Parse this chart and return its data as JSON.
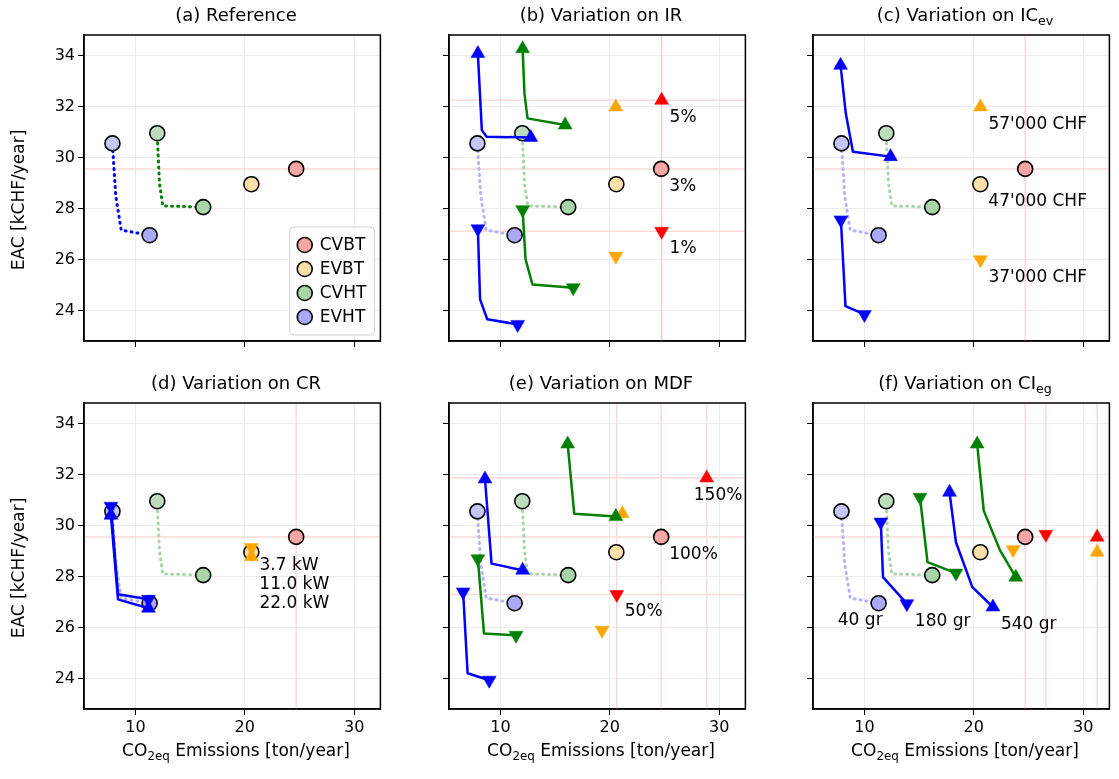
{
  "chart_data": [
    {
      "type": "scatter",
      "title": "(a) Reference",
      "ylabel": "EAC [kCHF/year]",
      "xlim": [
        5.3,
        32.4
      ],
      "ylim": [
        22.8,
        34.8
      ],
      "xticks": [
        10,
        20,
        30
      ],
      "yticks": [
        24,
        26,
        28,
        30,
        32,
        34
      ],
      "tick_labels": "y",
      "grid": true,
      "legend": "bottom right",
      "ref_lines": [
        {
          "axis": "y",
          "value": 29.55,
          "color": "#fbdada"
        }
      ],
      "series": [
        {
          "type": "line",
          "color": "#0000ff",
          "line_style": "dotted",
          "marker": "none",
          "x": [
            7.9,
            8.2,
            8.7,
            11.3
          ],
          "values": [
            30.5,
            28.5,
            27.15,
            26.95
          ]
        },
        {
          "type": "line",
          "color": "#008000",
          "line_style": "dotted",
          "marker": "none",
          "x": [
            12.0,
            12.2,
            12.5,
            16.2
          ],
          "values": [
            30.8,
            29.0,
            28.1,
            28.05
          ]
        },
        {
          "type": "scatter",
          "color": "#c5c5f7",
          "marker": "circle",
          "x": [
            7.9
          ],
          "values": [
            30.55
          ]
        },
        {
          "type": "scatter",
          "color": "#bcdcbc",
          "marker": "circle",
          "x": [
            12.0
          ],
          "values": [
            30.95
          ]
        },
        {
          "type": "scatter",
          "name": "CVBT",
          "color": "#f8a5a5",
          "marker": "circle",
          "x": [
            24.7
          ],
          "values": [
            29.55
          ]
        },
        {
          "type": "scatter",
          "name": "EVBT",
          "color": "#fbe0a8",
          "marker": "circle",
          "x": [
            20.6
          ],
          "values": [
            28.95
          ]
        },
        {
          "type": "scatter",
          "name": "CVHT",
          "color": "#a9d6a9",
          "marker": "circle",
          "x": [
            16.2
          ],
          "values": [
            28.05
          ]
        },
        {
          "type": "scatter",
          "name": "EVHT",
          "color": "#a9a9f5",
          "marker": "circle",
          "x": [
            11.3
          ],
          "values": [
            26.95
          ]
        }
      ]
    },
    {
      "type": "scatter",
      "title": "(b) Variation on IR",
      "xlim": [
        5.3,
        32.4
      ],
      "ylim": [
        22.8,
        34.8
      ],
      "xticks": [
        10,
        20,
        30
      ],
      "yticks": [
        24,
        26,
        28,
        30,
        32,
        34
      ],
      "tick_labels": false,
      "grid": true,
      "ref_lines": [
        {
          "axis": "x",
          "value": 24.74,
          "color": "#fbcaca"
        },
        {
          "axis": "y",
          "value": 32.24,
          "color": "#fbdada"
        },
        {
          "axis": "y",
          "value": 29.55,
          "color": "#fbdada"
        },
        {
          "axis": "y",
          "value": 27.1,
          "color": "#fbdada"
        }
      ],
      "annotations": [
        {
          "text": "5%",
          "x": 24.74,
          "y": 32.24
        },
        {
          "text": "3%",
          "x": 24.7,
          "y": 29.55
        },
        {
          "text": "1%",
          "x": 24.74,
          "y": 27.1
        }
      ],
      "series": [
        {
          "type": "line",
          "color": "#b3b3f5",
          "line_style": "dotted",
          "marker": "none",
          "x": [
            7.9,
            8.2,
            8.7,
            11.3
          ],
          "values": [
            30.5,
            28.5,
            27.15,
            26.95
          ]
        },
        {
          "type": "line",
          "color": "#a8d5a8",
          "line_style": "dotted",
          "marker": "none",
          "x": [
            12.0,
            12.2,
            12.5,
            16.2
          ],
          "values": [
            30.8,
            29.0,
            28.1,
            28.05
          ]
        },
        {
          "type": "scatter",
          "color": "#c5c5f7",
          "marker": "circle",
          "x": [
            7.9
          ],
          "values": [
            30.55
          ]
        },
        {
          "type": "scatter",
          "color": "#bcdcbc",
          "marker": "circle",
          "x": [
            12.0
          ],
          "values": [
            30.95
          ]
        },
        {
          "type": "scatter",
          "colors": [
            "#f8a5a5",
            "#fbe0a8",
            "#a9d6a9",
            "#a9a9f5"
          ],
          "marker": "circle",
          "x": [
            24.7,
            20.6,
            16.2,
            11.3
          ],
          "values": [
            29.55,
            28.95,
            28.05,
            26.95
          ]
        },
        {
          "type": "line",
          "color": "#0000ff",
          "line_style": "solid",
          "marker": "none",
          "x": [
            7.94,
            8.3,
            8.74,
            12.78
          ],
          "values": [
            34.07,
            31.07,
            30.81,
            30.78
          ]
        },
        {
          "type": "line",
          "color": "#0000ff",
          "line_style": "solid",
          "marker": "none",
          "x": [
            7.94,
            8.14,
            8.8,
            11.58
          ],
          "values": [
            27.2,
            24.43,
            23.65,
            23.45
          ]
        },
        {
          "type": "line",
          "color": "#008000",
          "line_style": "solid",
          "marker": "none",
          "x": [
            12.03,
            12.2,
            12.48,
            15.92
          ],
          "values": [
            34.26,
            32.5,
            31.53,
            31.27
          ]
        },
        {
          "type": "line",
          "color": "#008000",
          "line_style": "solid",
          "marker": "none",
          "x": [
            12.03,
            12.3,
            12.93,
            16.66
          ],
          "values": [
            27.95,
            26.0,
            25.02,
            24.89
          ]
        },
        {
          "type": "scatter",
          "color": "#0000ff",
          "marker": "triangle",
          "x": [
            7.94,
            12.78
          ],
          "values": [
            34.07,
            30.78
          ]
        },
        {
          "type": "scatter",
          "color": "#0000ff",
          "marker": "triangle-down",
          "x": [
            7.94,
            11.58
          ],
          "values": [
            27.2,
            23.45
          ]
        },
        {
          "type": "scatter",
          "color": "#008000",
          "marker": "triangle",
          "x": [
            12.03,
            15.92
          ],
          "values": [
            34.26,
            31.27
          ]
        },
        {
          "type": "scatter",
          "color": "#008000",
          "marker": "triangle-down",
          "x": [
            12.03,
            16.66
          ],
          "values": [
            27.95,
            24.89
          ]
        },
        {
          "type": "scatter",
          "color": "#ffa500",
          "marker": "triangle",
          "x": [
            20.55
          ],
          "values": [
            31.98
          ]
        },
        {
          "type": "scatter",
          "color": "#ffa500",
          "marker": "triangle-down",
          "x": [
            20.55
          ],
          "values": [
            26.12
          ]
        },
        {
          "type": "scatter",
          "color": "#ff0000",
          "marker": "triangle",
          "x": [
            24.74
          ],
          "values": [
            32.24
          ]
        },
        {
          "type": "scatter",
          "color": "#ff0000",
          "marker": "triangle-down",
          "x": [
            24.74
          ],
          "values": [
            27.1
          ]
        }
      ]
    },
    {
      "type": "scatter",
      "title": "(c) Variation on IC$_{ev}$",
      "xlim": [
        5.3,
        32.4
      ],
      "ylim": [
        22.8,
        34.8
      ],
      "xticks": [
        10,
        20,
        30
      ],
      "yticks": [
        24,
        26,
        28,
        30,
        32,
        34
      ],
      "tick_labels": false,
      "grid": true,
      "ref_lines": [
        {
          "axis": "x",
          "value": 24.7,
          "color": "#fbdada"
        },
        {
          "axis": "y",
          "value": 29.55,
          "color": "#fbdada"
        }
      ],
      "annotations": [
        {
          "text": "57'000 CHF",
          "x": 20.61,
          "y": 31.98
        },
        {
          "text": "47'000 CHF",
          "x": 20.6,
          "y": 28.95
        },
        {
          "text": "37'000 CHF",
          "x": 20.61,
          "y": 25.99
        }
      ],
      "series": [
        {
          "type": "line",
          "color": "#b3b3f5",
          "line_style": "dotted",
          "marker": "none",
          "x": [
            7.9,
            8.2,
            8.7,
            11.3
          ],
          "values": [
            30.5,
            28.5,
            27.15,
            26.95
          ]
        },
        {
          "type": "line",
          "color": "#a8d5a8",
          "line_style": "dotted",
          "marker": "none",
          "x": [
            12.0,
            12.2,
            12.5,
            16.2
          ],
          "values": [
            30.8,
            29.0,
            28.1,
            28.05
          ]
        },
        {
          "type": "scatter",
          "color": "#c5c5f7",
          "marker": "circle",
          "x": [
            7.9
          ],
          "values": [
            30.55
          ]
        },
        {
          "type": "scatter",
          "color": "#bcdcbc",
          "marker": "circle",
          "x": [
            12.0
          ],
          "values": [
            30.95
          ]
        },
        {
          "type": "scatter",
          "colors": [
            "#f8a5a5",
            "#fbe0a8",
            "#a9d6a9",
            "#a9a9f5"
          ],
          "marker": "circle",
          "x": [
            24.7,
            20.6,
            16.2,
            11.3
          ],
          "values": [
            29.55,
            28.95,
            28.05,
            26.95
          ]
        },
        {
          "type": "line",
          "color": "#0000ff",
          "line_style": "solid",
          "marker": "none",
          "x": [
            7.82,
            8.3,
            8.95,
            12.39
          ],
          "values": [
            33.61,
            31.72,
            30.22,
            30.03
          ]
        },
        {
          "type": "line",
          "color": "#0000ff",
          "line_style": "solid",
          "marker": "none",
          "x": [
            7.85,
            8.27,
            10.0
          ],
          "values": [
            27.55,
            24.17,
            23.84
          ]
        },
        {
          "type": "scatter",
          "color": "#0000ff",
          "marker": "triangle",
          "x": [
            7.82,
            12.39
          ],
          "values": [
            33.61,
            30.03
          ]
        },
        {
          "type": "scatter",
          "color": "#0000ff",
          "marker": "triangle-down",
          "x": [
            7.85,
            10.0
          ],
          "values": [
            27.55,
            23.84
          ]
        },
        {
          "type": "scatter",
          "color": "#ffa500",
          "marker": "triangle",
          "x": [
            20.61
          ],
          "values": [
            31.98
          ]
        },
        {
          "type": "scatter",
          "color": "#ffa500",
          "marker": "triangle-down",
          "x": [
            20.61
          ],
          "values": [
            25.99
          ]
        }
      ]
    },
    {
      "type": "scatter",
      "title": "(d) Variation on CR",
      "xlabel": "CO$_{2eq}$ Emissions [ton/year]",
      "ylabel": "EAC [kCHF/year]",
      "xlim": [
        5.3,
        32.4
      ],
      "ylim": [
        22.8,
        34.8
      ],
      "xticks": [
        10,
        20,
        30
      ],
      "yticks": [
        24,
        26,
        28,
        30,
        32,
        34
      ],
      "grid": true,
      "ref_lines": [
        {
          "axis": "x",
          "value": 24.7,
          "color": "#fbdada"
        },
        {
          "axis": "y",
          "value": 29.55,
          "color": "#fbdada"
        }
      ],
      "annotations": [
        {
          "text": "3.7 kW",
          "x": 20.61,
          "y": 29.13
        },
        {
          "text": "11.0 kW",
          "x": 20.6,
          "y": 28.95
        },
        {
          "text": "22.0 kW",
          "x": 20.61,
          "y": 28.77
        }
      ],
      "series": [
        {
          "type": "line",
          "color": "#b3b3f5",
          "line_style": "dotted",
          "marker": "none",
          "x": [
            7.9,
            8.2,
            8.7,
            11.3
          ],
          "values": [
            30.5,
            28.5,
            27.15,
            26.95
          ]
        },
        {
          "type": "line",
          "color": "#a8d5a8",
          "line_style": "dotted",
          "marker": "none",
          "x": [
            12.0,
            12.2,
            12.5,
            16.2
          ],
          "values": [
            30.8,
            29.0,
            28.1,
            28.05
          ]
        },
        {
          "type": "scatter",
          "color": "#c5c5f7",
          "marker": "circle",
          "x": [
            7.9
          ],
          "values": [
            30.55
          ]
        },
        {
          "type": "scatter",
          "color": "#bcdcbc",
          "marker": "circle",
          "x": [
            12.0
          ],
          "values": [
            30.95
          ]
        },
        {
          "type": "scatter",
          "colors": [
            "#f8a5a5",
            "#fbe0a8",
            "#a9d6a9",
            "#a9a9f5"
          ],
          "marker": "circle",
          "x": [
            24.7,
            20.6,
            16.2,
            11.3
          ],
          "values": [
            29.55,
            28.95,
            28.05,
            26.95
          ]
        },
        {
          "type": "line",
          "color": "#0000ff",
          "line_style": "solid",
          "marker": "none",
          "x": [
            7.76,
            8.41,
            11.19
          ],
          "values": [
            30.4,
            27.1,
            26.75
          ]
        },
        {
          "type": "line",
          "color": "#0000ff",
          "line_style": "solid",
          "marker": "none",
          "x": [
            7.76,
            8.41,
            11.19
          ],
          "values": [
            30.75,
            27.3,
            27.1
          ]
        },
        {
          "type": "scatter",
          "color": "#0000ff",
          "marker": "triangle",
          "x": [
            7.76,
            11.19
          ],
          "values": [
            30.4,
            26.75
          ]
        },
        {
          "type": "scatter",
          "color": "#0000ff",
          "marker": "triangle-down",
          "x": [
            7.76,
            11.19
          ],
          "values": [
            30.75,
            27.1
          ]
        },
        {
          "type": "scatter",
          "color": "#ffa500",
          "marker": "triangle",
          "x": [
            20.61
          ],
          "values": [
            28.77
          ]
        },
        {
          "type": "scatter",
          "color": "#ffa500",
          "marker": "triangle-down",
          "x": [
            20.61
          ],
          "values": [
            29.13
          ]
        }
      ]
    },
    {
      "type": "scatter",
      "title": "(e) Variation on MDF",
      "xlabel": "CO$_{2eq}$ Emissions [ton/year]",
      "xlim": [
        5.3,
        32.4
      ],
      "ylim": [
        22.8,
        34.8
      ],
      "xticks": [
        10,
        20,
        30
      ],
      "yticks": [
        24,
        26,
        28,
        30,
        32,
        34
      ],
      "tick_labels": "x",
      "grid": true,
      "ref_lines": [
        {
          "axis": "x",
          "value": 20.64,
          "color": "#fbdada"
        },
        {
          "axis": "x",
          "value": 24.7,
          "color": "#fbdada"
        },
        {
          "axis": "x",
          "value": 28.86,
          "color": "#fbdada"
        },
        {
          "axis": "y",
          "value": 31.86,
          "color": "#fbdada"
        },
        {
          "axis": "y",
          "value": 29.55,
          "color": "#fbdada"
        },
        {
          "axis": "y",
          "value": 27.29,
          "color": "#fbdada"
        }
      ],
      "annotations": [
        {
          "text": "150%",
          "x": 28.86,
          "y": 31.86
        },
        {
          "text": "100%",
          "x": 24.7,
          "y": 29.55
        },
        {
          "text": "50%",
          "x": 20.64,
          "y": 27.29
        }
      ],
      "series": [
        {
          "type": "line",
          "color": "#b3b3f5",
          "line_style": "dotted",
          "marker": "none",
          "x": [
            7.9,
            8.2,
            8.7,
            11.3
          ],
          "values": [
            30.5,
            28.5,
            27.15,
            26.95
          ]
        },
        {
          "type": "line",
          "color": "#a8d5a8",
          "line_style": "dotted",
          "marker": "none",
          "x": [
            12.0,
            12.2,
            12.5,
            16.2
          ],
          "values": [
            30.8,
            29.0,
            28.1,
            28.05
          ]
        },
        {
          "type": "scatter",
          "color": "#c5c5f7",
          "marker": "circle",
          "x": [
            7.9
          ],
          "values": [
            30.55
          ]
        },
        {
          "type": "scatter",
          "color": "#bcdcbc",
          "marker": "circle",
          "x": [
            12.0
          ],
          "values": [
            30.95
          ]
        },
        {
          "type": "scatter",
          "colors": [
            "#f8a5a5",
            "#fbe0a8",
            "#a9d6a9",
            "#a9a9f5"
          ],
          "marker": "circle",
          "x": [
            24.7,
            20.6,
            16.2,
            11.3
          ],
          "values": [
            29.55,
            28.95,
            28.05,
            26.95
          ]
        },
        {
          "type": "scatter",
          "color": "#ffa500",
          "marker": "triangle",
          "x": [
            21.15
          ],
          "values": [
            30.46
          ]
        },
        {
          "type": "line",
          "color": "#0000ff",
          "line_style": "solid",
          "marker": "none",
          "x": [
            8.59,
            9.19,
            12.03
          ],
          "values": [
            31.82,
            28.5,
            28.24
          ]
        },
        {
          "type": "line",
          "color": "#0000ff",
          "line_style": "solid",
          "marker": "none",
          "x": [
            6.59,
            7.0,
            8.98
          ],
          "values": [
            27.39,
            24.2,
            23.93
          ]
        },
        {
          "type": "line",
          "color": "#008000",
          "line_style": "solid",
          "marker": "none",
          "x": [
            16.15,
            16.75,
            20.55
          ],
          "values": [
            33.19,
            30.46,
            30.35
          ]
        },
        {
          "type": "line",
          "color": "#008000",
          "line_style": "solid",
          "marker": "none",
          "x": [
            7.94,
            8.5,
            11.43
          ],
          "values": [
            28.69,
            25.76,
            25.69
          ]
        },
        {
          "type": "scatter",
          "color": "#0000ff",
          "marker": "triangle",
          "x": [
            8.59,
            12.03
          ],
          "values": [
            31.82,
            28.24
          ]
        },
        {
          "type": "scatter",
          "color": "#0000ff",
          "marker": "triangle-down",
          "x": [
            6.59,
            8.98
          ],
          "values": [
            27.39,
            23.93
          ]
        },
        {
          "type": "scatter",
          "color": "#008000",
          "marker": "triangle",
          "x": [
            16.15,
            20.55
          ],
          "values": [
            33.19,
            30.35
          ]
        },
        {
          "type": "scatter",
          "color": "#008000",
          "marker": "triangle-down",
          "x": [
            7.94,
            11.43
          ],
          "values": [
            28.69,
            25.69
          ]
        },
        {
          "type": "scatter",
          "color": "#ffa500",
          "marker": "triangle-down",
          "x": [
            19.29
          ],
          "values": [
            25.89
          ]
        },
        {
          "type": "scatter",
          "color": "#ff0000",
          "marker": "triangle",
          "x": [
            28.86
          ],
          "values": [
            31.86
          ]
        },
        {
          "type": "scatter",
          "color": "#ff0000",
          "marker": "triangle-down",
          "x": [
            20.64
          ],
          "values": [
            27.29
          ]
        }
      ]
    },
    {
      "type": "scatter",
      "title": "(f) Variation on CI$_{eg}$",
      "xlabel": "CO$_{2eq}$ Emissions [ton/year]",
      "xlim": [
        5.3,
        32.4
      ],
      "ylim": [
        22.8,
        34.8
      ],
      "xticks": [
        10,
        20,
        30
      ],
      "yticks": [
        24,
        26,
        28,
        30,
        32,
        34
      ],
      "tick_labels": "x",
      "grid": true,
      "ref_lines": [
        {
          "axis": "x",
          "value": 24.7,
          "color": "#fbdada"
        },
        {
          "axis": "x",
          "value": 26.59,
          "color": "#fbdada"
        },
        {
          "axis": "x",
          "value": 31.28,
          "color": "#fbdada"
        },
        {
          "axis": "y",
          "value": 29.55,
          "color": "#fbdada"
        }
      ],
      "annotations": [
        {
          "text": "40 gr",
          "x": 11.3,
          "y": 26.95
        },
        {
          "text": "180 gr",
          "x": 13.88,
          "y": 26.93
        },
        {
          "text": "540 gr",
          "x": 21.75,
          "y": 26.8
        }
      ],
      "series": [
        {
          "type": "line",
          "color": "#b3b3f5",
          "line_style": "dotted",
          "marker": "none",
          "x": [
            7.9,
            8.2,
            8.7,
            11.3
          ],
          "values": [
            30.5,
            28.5,
            27.15,
            26.95
          ]
        },
        {
          "type": "line",
          "color": "#a8d5a8",
          "line_style": "dotted",
          "marker": "none",
          "x": [
            12.0,
            12.2,
            12.5,
            16.2
          ],
          "values": [
            30.8,
            29.0,
            28.1,
            28.05
          ]
        },
        {
          "type": "scatter",
          "color": "#c5c5f7",
          "marker": "circle",
          "x": [
            7.9
          ],
          "values": [
            30.55
          ]
        },
        {
          "type": "scatter",
          "color": "#bcdcbc",
          "marker": "circle",
          "x": [
            12.0
          ],
          "values": [
            30.95
          ]
        },
        {
          "type": "scatter",
          "colors": [
            "#f8a5a5",
            "#fbe0a8",
            "#a9d6a9",
            "#a9a9f5"
          ],
          "marker": "circle",
          "x": [
            24.7,
            20.6,
            16.2,
            11.3
          ],
          "values": [
            29.55,
            28.95,
            28.05,
            26.95
          ]
        },
        {
          "type": "line",
          "color": "#0000ff",
          "line_style": "solid",
          "marker": "none",
          "x": [
            11.5,
            11.7,
            13.88
          ],
          "values": [
            30.13,
            27.97,
            26.93
          ]
        },
        {
          "type": "line",
          "color": "#008000",
          "line_style": "solid",
          "marker": "none",
          "x": [
            15.08,
            15.77,
            18.37
          ],
          "values": [
            31.1,
            28.56,
            28.13
          ]
        },
        {
          "type": "line",
          "color": "#0000ff",
          "line_style": "solid",
          "marker": "none",
          "x": [
            17.78,
            18.37,
            19.87,
            21.75
          ],
          "values": [
            31.3,
            29.34,
            27.58,
            26.8
          ]
        },
        {
          "type": "line",
          "color": "#008000",
          "line_style": "solid",
          "marker": "none",
          "x": [
            20.31,
            20.91,
            22.4,
            23.84
          ],
          "values": [
            33.19,
            30.58,
            29.02,
            27.97
          ]
        },
        {
          "type": "scatter",
          "color": "#0000ff",
          "marker": "triangle-down",
          "x": [
            11.5,
            13.88
          ],
          "values": [
            30.13,
            26.93
          ]
        },
        {
          "type": "scatter",
          "color": "#008000",
          "marker": "triangle-down",
          "x": [
            15.08,
            18.37
          ],
          "values": [
            31.1,
            28.13
          ]
        },
        {
          "type": "scatter",
          "color": "#0000ff",
          "marker": "triangle",
          "x": [
            17.78,
            21.75
          ],
          "values": [
            31.3,
            26.8
          ]
        },
        {
          "type": "scatter",
          "color": "#008000",
          "marker": "triangle",
          "x": [
            20.31,
            23.84
          ],
          "values": [
            33.19,
            27.97
          ]
        },
        {
          "type": "scatter",
          "color": "#ffa500",
          "marker": "triangle-down",
          "x": [
            23.6
          ],
          "values": [
            29.05
          ]
        },
        {
          "type": "scatter",
          "color": "#ffa500",
          "marker": "triangle",
          "x": [
            31.28
          ],
          "values": [
            28.95
          ]
        },
        {
          "type": "scatter",
          "color": "#ff0000",
          "marker": "triangle-down",
          "x": [
            26.59
          ],
          "values": [
            29.65
          ]
        },
        {
          "type": "scatter",
          "color": "#ff0000",
          "marker": "triangle",
          "x": [
            31.28
          ],
          "values": [
            29.54
          ]
        }
      ]
    }
  ]
}
